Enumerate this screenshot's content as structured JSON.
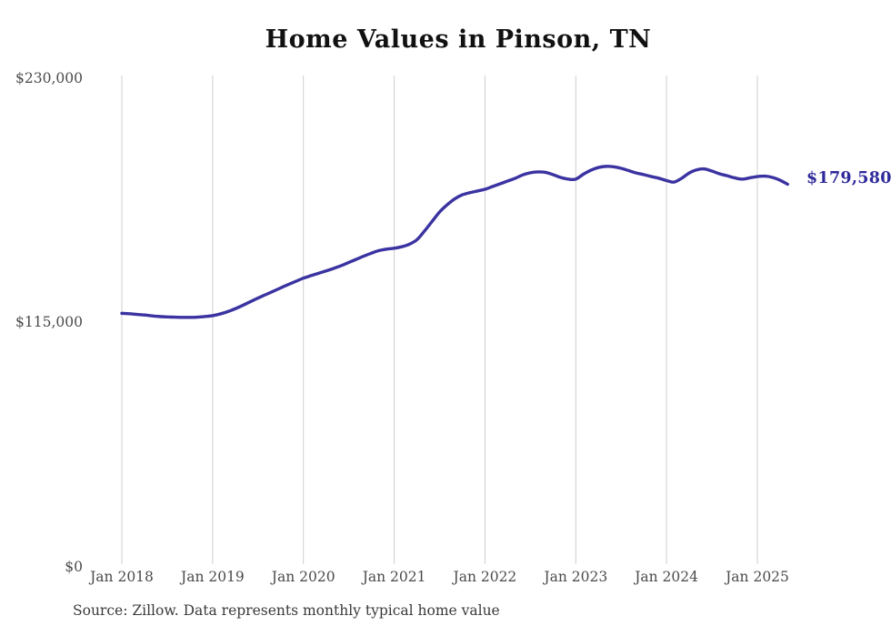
{
  "chart_data": {
    "type": "line",
    "title": "Home Values in Pinson, TN",
    "xlabel": "",
    "ylabel": "",
    "ylim": [
      0,
      230000
    ],
    "grid": "vertical-only",
    "legend_position": "none",
    "line_color": "#3a33a1",
    "grid_color": "#cfcfcf",
    "end_label": "$179,580",
    "latest_value": 179580,
    "source": "Source: Zillow. Data represents monthly typical home value",
    "yticks": [
      {
        "label": "$230,000",
        "value": 230000
      },
      {
        "label": "$115,000",
        "value": 115000
      },
      {
        "label": "$0",
        "value": 0
      }
    ],
    "xticks": [
      {
        "label": "Jan 2018",
        "month_index": 0
      },
      {
        "label": "Jan 2019",
        "month_index": 12
      },
      {
        "label": "Jan 2020",
        "month_index": 24
      },
      {
        "label": "Jan 2021",
        "month_index": 36
      },
      {
        "label": "Jan 2022",
        "month_index": 48
      },
      {
        "label": "Jan 2023",
        "month_index": 60
      },
      {
        "label": "Jan 2024",
        "month_index": 72
      },
      {
        "label": "Jan 2025",
        "month_index": 84
      }
    ],
    "x": [
      "2018-01",
      "2018-02",
      "2018-03",
      "2018-04",
      "2018-05",
      "2018-06",
      "2018-07",
      "2018-08",
      "2018-09",
      "2018-10",
      "2018-11",
      "2018-12",
      "2019-01",
      "2019-02",
      "2019-03",
      "2019-04",
      "2019-05",
      "2019-06",
      "2019-07",
      "2019-08",
      "2019-09",
      "2019-10",
      "2019-11",
      "2019-12",
      "2020-01",
      "2020-02",
      "2020-03",
      "2020-04",
      "2020-05",
      "2020-06",
      "2020-07",
      "2020-08",
      "2020-09",
      "2020-10",
      "2020-11",
      "2020-12",
      "2021-01",
      "2021-02",
      "2021-03",
      "2021-04",
      "2021-05",
      "2021-06",
      "2021-07",
      "2021-08",
      "2021-09",
      "2021-10",
      "2021-11",
      "2021-12",
      "2022-01",
      "2022-02",
      "2022-03",
      "2022-04",
      "2022-05",
      "2022-06",
      "2022-07",
      "2022-08",
      "2022-09",
      "2022-10",
      "2022-11",
      "2022-12",
      "2023-01",
      "2023-02",
      "2023-03",
      "2023-04",
      "2023-05",
      "2023-06",
      "2023-07",
      "2023-08",
      "2023-09",
      "2023-10",
      "2023-11",
      "2023-12",
      "2024-01",
      "2024-02",
      "2024-03",
      "2024-04",
      "2024-05",
      "2024-06",
      "2024-07",
      "2024-08",
      "2024-09",
      "2024-10",
      "2024-11",
      "2024-12",
      "2025-01",
      "2025-02",
      "2025-03",
      "2025-04",
      "2025-05"
    ],
    "series": [
      {
        "name": "Typical home value (USD)",
        "values": [
          118700,
          118500,
          118200,
          117900,
          117500,
          117200,
          117000,
          116900,
          116800,
          116800,
          116900,
          117200,
          117600,
          118400,
          119500,
          120900,
          122500,
          124200,
          125900,
          127500,
          129100,
          130700,
          132300,
          133800,
          135300,
          136500,
          137600,
          138700,
          139900,
          141200,
          142700,
          144200,
          145700,
          147100,
          148300,
          149000,
          149400,
          150100,
          151300,
          153400,
          157500,
          162000,
          166500,
          169900,
          172700,
          174600,
          175600,
          176400,
          177200,
          178500,
          179800,
          181100,
          182400,
          184000,
          185000,
          185400,
          185200,
          184100,
          182800,
          182000,
          182000,
          184300,
          186200,
          187500,
          188000,
          187800,
          187100,
          186000,
          184900,
          184100,
          183200,
          182400,
          181300,
          180600,
          182400,
          184900,
          186400,
          186800,
          185800,
          184500,
          183600,
          182600,
          182000,
          182600,
          183200,
          183400,
          182800,
          181500,
          179580
        ]
      }
    ]
  }
}
